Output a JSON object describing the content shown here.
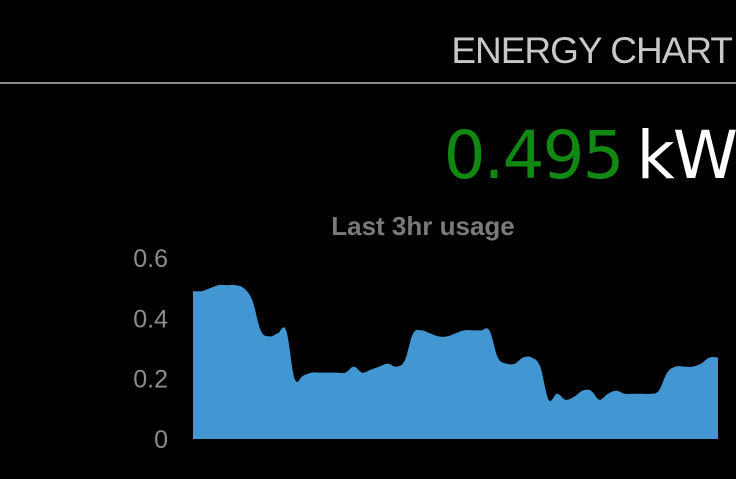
{
  "header": {
    "title": "ENERGY CHART"
  },
  "reading": {
    "value": "0.495",
    "unit": "kW",
    "value_color": "#118811",
    "unit_color": "#ffffff"
  },
  "chart_data": {
    "type": "area",
    "title": "Last 3hr usage",
    "xlabel": "",
    "ylabel": "",
    "ylim": [
      0,
      0.6
    ],
    "yticks": [
      0,
      0.2,
      0.4,
      0.6
    ],
    "grid": false,
    "legend": "none",
    "color": "#4297d2",
    "series": [
      {
        "values": [
          0.49,
          0.49,
          0.5,
          0.51,
          0.51,
          0.51,
          0.5,
          0.46,
          0.36,
          0.34,
          0.35,
          0.36,
          0.2,
          0.21,
          0.22,
          0.22,
          0.22,
          0.22,
          0.22,
          0.24,
          0.22,
          0.23,
          0.24,
          0.25,
          0.24,
          0.26,
          0.35,
          0.36,
          0.35,
          0.34,
          0.34,
          0.35,
          0.36,
          0.36,
          0.36,
          0.36,
          0.27,
          0.25,
          0.25,
          0.27,
          0.27,
          0.24,
          0.13,
          0.15,
          0.13,
          0.14,
          0.16,
          0.16,
          0.13,
          0.15,
          0.16,
          0.15,
          0.15,
          0.15,
          0.15,
          0.16,
          0.22,
          0.24,
          0.24,
          0.24,
          0.25,
          0.27,
          0.27
        ]
      }
    ]
  }
}
